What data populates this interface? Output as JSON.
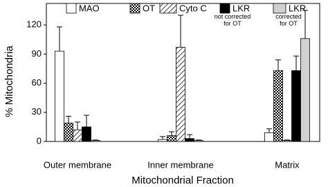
{
  "chart_data": {
    "type": "bar",
    "x_label": "Mitochondrial Fraction",
    "y_label": "% Mitochondria",
    "categories": [
      "Outer membrane",
      "Inner membrane",
      "Matrix"
    ],
    "series": [
      {
        "name": "MAO",
        "color": "#ffffff",
        "pattern": "none",
        "values": [
          93,
          2,
          9
        ],
        "errors": [
          25,
          3,
          4
        ]
      },
      {
        "name": "OT",
        "color": "#ffffff",
        "pattern": "checker",
        "values": [
          19,
          6,
          73
        ],
        "errors": [
          7,
          4,
          11
        ]
      },
      {
        "name": "Cyto C",
        "color": "#ffffff",
        "pattern": "hatch",
        "values": [
          12,
          97,
          1
        ],
        "errors": [
          8,
          33,
          0.5
        ]
      },
      {
        "name": "LKR",
        "legend_note": "not corrected for OT",
        "color": "#000000",
        "pattern": "none",
        "values": [
          15,
          3,
          73
        ],
        "errors": [
          12,
          4,
          15
        ]
      },
      {
        "name": "LKR",
        "legend_note": "corrected for OT",
        "color": "#d0d0d0",
        "pattern": "none",
        "values": [
          1,
          1,
          106
        ],
        "errors": [
          0.5,
          0.5,
          29
        ]
      }
    ],
    "ylim": [
      0,
      140
    ],
    "yticks": [
      0,
      30,
      60,
      90,
      120
    ],
    "grid": false
  }
}
